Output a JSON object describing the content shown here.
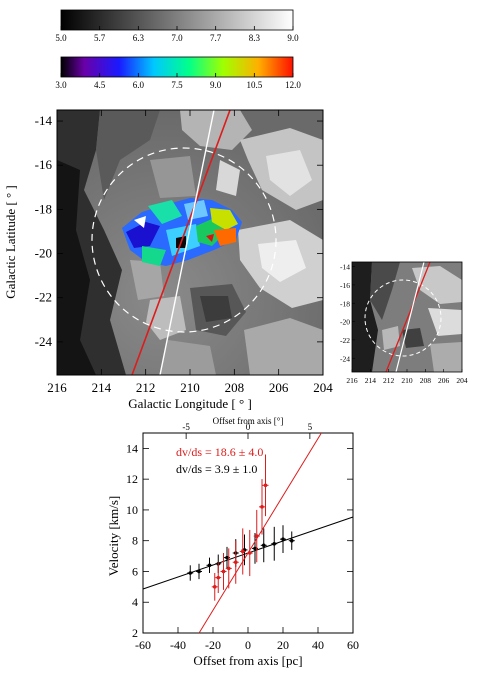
{
  "colorbar_gray": {
    "ticks": [
      "5.0",
      "5.7",
      "6.3",
      "7.0",
      "7.7",
      "8.3",
      "9.0"
    ]
  },
  "colorbar_color": {
    "ticks": [
      "3.0",
      "4.5",
      "6.0",
      "7.5",
      "9.0",
      "10.5",
      "12.0"
    ]
  },
  "main_map": {
    "xlabel": "Galactic Longitude [ ° ]",
    "ylabel": "Galactic Latitude [ ° ]",
    "x_ticks": [
      "216",
      "214",
      "212",
      "210",
      "208",
      "206",
      "204"
    ],
    "y_ticks": [
      "-14",
      "-16",
      "-18",
      "-20",
      "-22",
      "-24"
    ]
  },
  "inset_map": {
    "x_ticks": [
      "216",
      "214",
      "212",
      "210",
      "208",
      "206",
      "204"
    ],
    "y_ticks": [
      "-14",
      "-16",
      "-18",
      "-20",
      "-22",
      "-24"
    ]
  },
  "velocity_plot": {
    "top_xlabel": "Offset from axis [°]",
    "top_ticks": [
      "-5",
      "0",
      "5"
    ],
    "xlabel": "Offset from axis [pc]",
    "ylabel": "Velocity [km/s]",
    "x_ticks": [
      "-60",
      "-40",
      "-20",
      "0",
      "20",
      "40",
      "60"
    ],
    "y_ticks": [
      "2",
      "4",
      "6",
      "8",
      "10",
      "12",
      "14"
    ],
    "annot_red": "dv/ds = 18.6 ± 4.0",
    "annot_black": "dv/ds = 3.9 ± 1.0",
    "colors": {
      "red": "#dd1c1c",
      "black": "#000000"
    }
  },
  "chart_data": [
    {
      "type": "heatmap",
      "colorbar": {
        "range": [
          5.0,
          9.0
        ],
        "colormap": "gray"
      },
      "xlabel": "Galactic Longitude [ ° ]",
      "ylabel": "Galactic Latitude [ ° ]",
      "xlim": [
        216,
        204
      ],
      "ylim": [
        -25.5,
        -13.5
      ],
      "overlay_colorbar": {
        "range": [
          3.0,
          12.0
        ],
        "colormap": "rainbow"
      },
      "lines": [
        {
          "color": "red",
          "from": [
            212.9,
            -25.5
          ],
          "to": [
            208.4,
            -13.5
          ]
        },
        {
          "color": "white",
          "from": [
            210.9,
            -25.5
          ],
          "to": [
            208.8,
            -13.5
          ]
        }
      ],
      "circle": {
        "style": "dashed",
        "color": "white",
        "center": [
          210.0,
          -20.2
        ],
        "radius_deg": 5.0
      }
    },
    {
      "type": "scatter",
      "xlabel": "Offset from axis [pc]",
      "ylabel": "Velocity [km/s]",
      "xlim": [
        -60,
        60
      ],
      "ylim": [
        2,
        15
      ],
      "top_axis": {
        "label": "Offset from axis [°]",
        "ticks": [
          -5,
          0,
          5
        ]
      },
      "series": [
        {
          "name": "dv/ds = 3.9 ± 1.0",
          "color": "#000000",
          "x": [
            -33,
            -28,
            -22,
            -17,
            -12,
            -7,
            -2,
            4,
            9,
            15,
            20,
            25
          ],
          "y": [
            5.9,
            6.0,
            6.4,
            6.5,
            6.9,
            7.2,
            7.4,
            7.5,
            7.7,
            7.8,
            8.1,
            8.0
          ],
          "yerr": [
            0.5,
            0.5,
            0.5,
            0.6,
            0.7,
            0.9,
            1.0,
            1.0,
            1.1,
            1.1,
            0.9,
            0.6
          ],
          "fit": {
            "slope_per_pc": 0.039,
            "intercept": 7.2
          }
        },
        {
          "name": "dv/ds = 18.6 ± 4.0",
          "color": "#dd1c1c",
          "x": [
            -19,
            -17,
            -14,
            -11,
            -7,
            -3,
            1,
            5,
            8,
            10
          ],
          "y": [
            5.0,
            5.6,
            6.0,
            6.2,
            6.6,
            7.3,
            7.2,
            8.3,
            10.2,
            11.6
          ],
          "yerr": [
            0.9,
            1.0,
            1.2,
            1.3,
            1.4,
            1.5,
            1.5,
            1.7,
            1.8,
            2.0
          ],
          "fit": {
            "slope_per_pc": 0.186,
            "intercept": 7.2
          }
        }
      ]
    }
  ]
}
